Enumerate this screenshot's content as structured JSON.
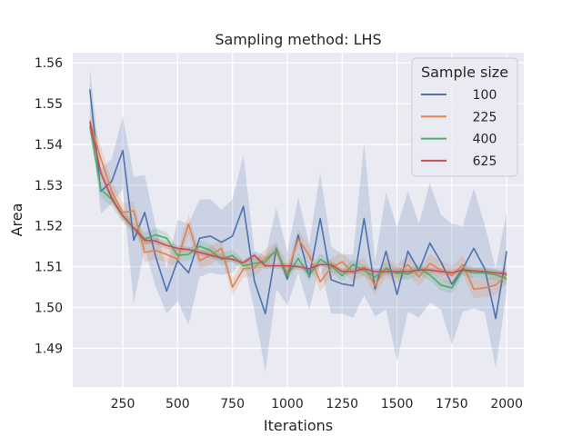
{
  "chart_data": {
    "type": "line",
    "title": "Sampling method: LHS",
    "xlabel": "Iterations",
    "ylabel": "Area",
    "xlim": [
      22,
      2078
    ],
    "ylim": [
      1.4805,
      1.5625
    ],
    "xticks": [
      250,
      500,
      750,
      1000,
      1250,
      1500,
      1750,
      2000
    ],
    "xtick_labels": [
      "250",
      "500",
      "750",
      "1000",
      "1250",
      "1500",
      "1750",
      "2000"
    ],
    "yticks": [
      1.49,
      1.5,
      1.51,
      1.52,
      1.53,
      1.54,
      1.55,
      1.56
    ],
    "ytick_labels": [
      "1.49",
      "1.50",
      "1.51",
      "1.52",
      "1.53",
      "1.54",
      "1.55",
      "1.56"
    ],
    "grid": true,
    "legend": {
      "title": "Sample size",
      "placement": "top-right"
    },
    "x": [
      100,
      150,
      200,
      250,
      300,
      350,
      400,
      450,
      500,
      550,
      600,
      650,
      700,
      750,
      800,
      850,
      900,
      950,
      1000,
      1050,
      1100,
      1150,
      1200,
      1250,
      1300,
      1350,
      1400,
      1450,
      1500,
      1550,
      1600,
      1650,
      1700,
      1750,
      1800,
      1850,
      1900,
      1950,
      2000
    ],
    "series": [
      {
        "name": "100",
        "color": "#4c72b0",
        "values": [
          1.5535,
          1.5285,
          1.531,
          1.5385,
          1.5165,
          1.5233,
          1.5125,
          1.504,
          1.5115,
          1.5085,
          1.517,
          1.5175,
          1.516,
          1.5175,
          1.5248,
          1.5065,
          1.4985,
          1.5145,
          1.507,
          1.5178,
          1.5075,
          1.5218,
          1.5068,
          1.5058,
          1.5053,
          1.5218,
          1.5045,
          1.5138,
          1.5032,
          1.5138,
          1.509,
          1.5158,
          1.5112,
          1.5057,
          1.5095,
          1.5145,
          1.5095,
          1.4973,
          1.5138
        ],
        "lower": [
          1.5485,
          1.523,
          1.5255,
          1.529,
          1.501,
          1.5145,
          1.505,
          1.4985,
          1.5015,
          1.4958,
          1.5075,
          1.5085,
          1.508,
          1.5085,
          1.512,
          1.4992,
          1.4843,
          1.5045,
          1.5005,
          1.5085,
          1.4995,
          1.5105,
          1.4985,
          1.4985,
          1.4975,
          1.503,
          1.4978,
          1.4995,
          1.4868,
          1.499,
          1.4975,
          1.5012,
          1.4995,
          1.4908,
          1.499,
          1.4998,
          1.4988,
          1.4851,
          1.5042
        ],
        "upper": [
          1.5588,
          1.534,
          1.5365,
          1.547,
          1.532,
          1.5325,
          1.52,
          1.5095,
          1.5215,
          1.5205,
          1.5265,
          1.5265,
          1.524,
          1.5265,
          1.5373,
          1.5138,
          1.5127,
          1.5245,
          1.5135,
          1.527,
          1.5155,
          1.533,
          1.515,
          1.513,
          1.513,
          1.5405,
          1.5112,
          1.5282,
          1.5197,
          1.5285,
          1.5205,
          1.5305,
          1.5228,
          1.5205,
          1.52,
          1.5292,
          1.5202,
          1.5095,
          1.5235
        ]
      },
      {
        "name": "225",
        "color": "#dd8452",
        "values": [
          1.5458,
          1.5365,
          1.5285,
          1.5233,
          1.5237,
          1.5135,
          1.514,
          1.513,
          1.5118,
          1.5205,
          1.5115,
          1.5128,
          1.5145,
          1.505,
          1.5095,
          1.5098,
          1.512,
          1.5138,
          1.5085,
          1.5168,
          1.5128,
          1.5063,
          1.5098,
          1.5112,
          1.5085,
          1.51,
          1.5053,
          1.5098,
          1.5082,
          1.5105,
          1.5075,
          1.5108,
          1.5092,
          1.5078,
          1.5105,
          1.5045,
          1.5048,
          1.5055,
          1.508
        ],
        "lower": [
          1.5432,
          1.5335,
          1.526,
          1.5212,
          1.5212,
          1.511,
          1.5118,
          1.511,
          1.5098,
          1.518,
          1.5095,
          1.5105,
          1.5125,
          1.5028,
          1.5075,
          1.5075,
          1.5098,
          1.5115,
          1.5062,
          1.5145,
          1.5105,
          1.504,
          1.5075,
          1.509,
          1.5062,
          1.5078,
          1.503,
          1.5075,
          1.5058,
          1.5082,
          1.5052,
          1.5085,
          1.507,
          1.5055,
          1.5082,
          1.5022,
          1.5025,
          1.5032,
          1.5058
        ],
        "upper": [
          1.5485,
          1.5395,
          1.531,
          1.5255,
          1.5262,
          1.516,
          1.5162,
          1.515,
          1.5138,
          1.523,
          1.5135,
          1.5151,
          1.5165,
          1.5072,
          1.5115,
          1.5121,
          1.5142,
          1.5161,
          1.5108,
          1.5191,
          1.5151,
          1.5086,
          1.5121,
          1.5134,
          1.5108,
          1.5122,
          1.5076,
          1.5121,
          1.5106,
          1.5128,
          1.5098,
          1.5131,
          1.5114,
          1.5101,
          1.5128,
          1.5068,
          1.5071,
          1.5078,
          1.5102
        ]
      },
      {
        "name": "400",
        "color": "#55a868",
        "values": [
          1.5445,
          1.529,
          1.5265,
          1.5225,
          1.5195,
          1.5168,
          1.5178,
          1.517,
          1.5128,
          1.513,
          1.515,
          1.514,
          1.5118,
          1.5128,
          1.5102,
          1.5108,
          1.5112,
          1.5142,
          1.5078,
          1.512,
          1.5078,
          1.5118,
          1.5102,
          1.5078,
          1.5105,
          1.509,
          1.5075,
          1.5095,
          1.5085,
          1.5082,
          1.5095,
          1.508,
          1.5055,
          1.5048,
          1.5092,
          1.5085,
          1.5085,
          1.508,
          1.507
        ],
        "lower": [
          1.5425,
          1.527,
          1.5248,
          1.5208,
          1.518,
          1.5152,
          1.5162,
          1.5155,
          1.5112,
          1.5115,
          1.5135,
          1.5125,
          1.5104,
          1.5114,
          1.5088,
          1.5094,
          1.5098,
          1.5128,
          1.5064,
          1.5106,
          1.5064,
          1.5104,
          1.5088,
          1.5064,
          1.5091,
          1.5076,
          1.5061,
          1.5081,
          1.5071,
          1.5068,
          1.5081,
          1.5066,
          1.5041,
          1.5034,
          1.5078,
          1.5071,
          1.5071,
          1.5066,
          1.5056
        ],
        "upper": [
          1.5465,
          1.531,
          1.5282,
          1.5242,
          1.521,
          1.5184,
          1.5194,
          1.5185,
          1.5144,
          1.5145,
          1.5165,
          1.5155,
          1.5132,
          1.5142,
          1.5116,
          1.5122,
          1.5126,
          1.5156,
          1.5092,
          1.5134,
          1.5092,
          1.5132,
          1.5116,
          1.5092,
          1.5119,
          1.5104,
          1.5089,
          1.5109,
          1.5099,
          1.5096,
          1.5109,
          1.5094,
          1.5069,
          1.5062,
          1.5106,
          1.5099,
          1.5099,
          1.5094,
          1.5084
        ]
      },
      {
        "name": "625",
        "color": "#c44e52",
        "values": [
          1.5455,
          1.533,
          1.5268,
          1.5225,
          1.5195,
          1.5165,
          1.5163,
          1.5152,
          1.5145,
          1.5142,
          1.5135,
          1.5128,
          1.5122,
          1.5118,
          1.511,
          1.5128,
          1.5102,
          1.5102,
          1.5102,
          1.51,
          1.5095,
          1.5105,
          1.5105,
          1.5088,
          1.5088,
          1.5095,
          1.5088,
          1.5088,
          1.5088,
          1.5088,
          1.5092,
          1.5092,
          1.5088,
          1.5085,
          1.5092,
          1.509,
          1.5088,
          1.5085,
          1.5082
        ],
        "lower": [
          1.5442,
          1.5318,
          1.5257,
          1.5215,
          1.5186,
          1.5157,
          1.5155,
          1.5144,
          1.5138,
          1.5135,
          1.5128,
          1.5121,
          1.5115,
          1.5111,
          1.5103,
          1.5121,
          1.5095,
          1.5095,
          1.5095,
          1.5093,
          1.5088,
          1.5098,
          1.5098,
          1.5081,
          1.5081,
          1.5088,
          1.5081,
          1.5081,
          1.5081,
          1.5081,
          1.5085,
          1.5085,
          1.5081,
          1.5078,
          1.5085,
          1.5083,
          1.5081,
          1.5078,
          1.5075
        ],
        "upper": [
          1.5468,
          1.5342,
          1.5279,
          1.5235,
          1.5204,
          1.5173,
          1.5171,
          1.516,
          1.5152,
          1.5149,
          1.5142,
          1.5135,
          1.5129,
          1.5125,
          1.5117,
          1.5135,
          1.5109,
          1.5109,
          1.5109,
          1.5107,
          1.5102,
          1.5112,
          1.5112,
          1.5095,
          1.5095,
          1.5102,
          1.5095,
          1.5095,
          1.5095,
          1.5095,
          1.5099,
          1.5099,
          1.5095,
          1.5092,
          1.5099,
          1.5097,
          1.5095,
          1.5092,
          1.5089
        ]
      }
    ]
  }
}
